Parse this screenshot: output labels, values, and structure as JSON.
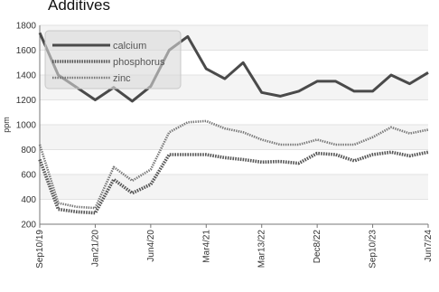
{
  "chart_data": {
    "type": "line",
    "title": "Additives",
    "ylabel": "ppm",
    "xlabel": "",
    "ylim": [
      200,
      1800
    ],
    "yticks": [
      200,
      400,
      600,
      800,
      1000,
      1200,
      1400,
      1600,
      1800
    ],
    "grid": true,
    "legend_position": "top-left",
    "categories": [
      "Sep10/19",
      "",
      "",
      "Jan21/20",
      "",
      "",
      "Jun4/20",
      "",
      "",
      "Mar4/21",
      "",
      "",
      "Mar13/22",
      "",
      "",
      "Dec8/22",
      "",
      "",
      "Sep10/23",
      "",
      "",
      "Jun7/24"
    ],
    "x_tick_labels": [
      "Sep10/19",
      "Jan21/20",
      "Jun4/20",
      "Mar4/21",
      "Mar13/22",
      "Dec8/22",
      "Sep10/23",
      "Jun7/24"
    ],
    "series": [
      {
        "name": "calcium",
        "color": "#4a4a4a",
        "style": "solid",
        "values": [
          1740,
          1400,
          1300,
          1200,
          1300,
          1190,
          1310,
          1600,
          1710,
          1450,
          1370,
          1500,
          1260,
          1230,
          1270,
          1350,
          1350,
          1270,
          1270,
          1400,
          1330,
          1420
        ]
      },
      {
        "name": "phosphorus",
        "color": "#555555",
        "style": "dotted",
        "values": [
          720,
          320,
          300,
          290,
          560,
          450,
          520,
          760,
          760,
          760,
          735,
          720,
          700,
          705,
          690,
          770,
          760,
          710,
          760,
          780,
          750,
          780
        ]
      },
      {
        "name": "zinc",
        "color": "#777777",
        "style": "dotted",
        "values": [
          840,
          370,
          340,
          330,
          660,
          550,
          640,
          940,
          1020,
          1030,
          970,
          940,
          880,
          840,
          840,
          880,
          840,
          840,
          900,
          980,
          930,
          960
        ]
      }
    ]
  }
}
